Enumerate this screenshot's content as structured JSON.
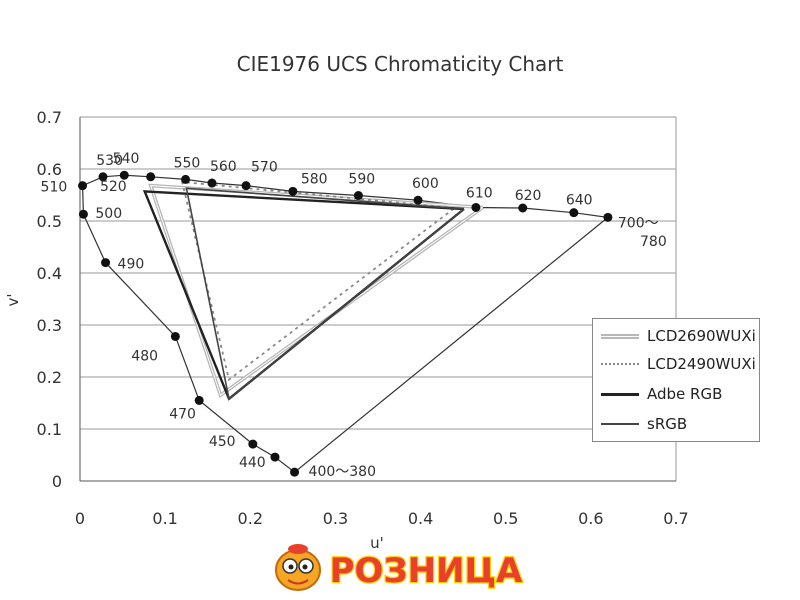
{
  "chart_data": {
    "type": "line",
    "title": "CIE1976 UCS Chromaticity Chart",
    "xlabel": "u'",
    "ylabel": "v'",
    "xlim": [
      0,
      0.7
    ],
    "ylim": [
      0,
      0.7
    ],
    "xticks": [
      "0",
      "0.1",
      "0.2",
      "0.3",
      "0.4",
      "0.5",
      "0.6",
      "0.7"
    ],
    "yticks": [
      "0",
      "0.1",
      "0.2",
      "0.3",
      "0.4",
      "0.5",
      "0.6",
      "0.7"
    ],
    "grid": true,
    "legend_position": "right",
    "spectral_locus": {
      "points": [
        {
          "label": "400～380",
          "x": 0.252,
          "y": 0.017
        },
        {
          "label": "440",
          "x": 0.229,
          "y": 0.046
        },
        {
          "label": "450",
          "x": 0.203,
          "y": 0.071
        },
        {
          "label": "470",
          "x": 0.14,
          "y": 0.155
        },
        {
          "label": "480",
          "x": 0.112,
          "y": 0.278
        },
        {
          "label": "490",
          "x": 0.03,
          "y": 0.42
        },
        {
          "label": "500",
          "x": 0.004,
          "y": 0.513
        },
        {
          "label": "510",
          "x": 0.003,
          "y": 0.568
        },
        {
          "label": "520",
          "x": 0.027,
          "y": 0.585
        },
        {
          "label": "530",
          "x": 0.052,
          "y": 0.588
        },
        {
          "label": "540",
          "x": 0.083,
          "y": 0.585
        },
        {
          "label": "550",
          "x": 0.124,
          "y": 0.58
        },
        {
          "label": "560",
          "x": 0.155,
          "y": 0.573
        },
        {
          "label": "570",
          "x": 0.195,
          "y": 0.568
        },
        {
          "label": "580",
          "x": 0.25,
          "y": 0.557
        },
        {
          "label": "590",
          "x": 0.327,
          "y": 0.549
        },
        {
          "label": "600",
          "x": 0.397,
          "y": 0.54
        },
        {
          "label": "610",
          "x": 0.465,
          "y": 0.526
        },
        {
          "label": "620",
          "x": 0.52,
          "y": 0.525
        },
        {
          "label": "640",
          "x": 0.58,
          "y": 0.516
        },
        {
          "label": "700～",
          "x": 0.62,
          "y": 0.507
        }
      ],
      "extra_label": "780"
    },
    "series": [
      {
        "name": "LCD2690WUXi",
        "style": "double-gray",
        "color": "#aaaaaa",
        "x": [
          0.473,
          0.083,
          0.165,
          0.473
        ],
        "y": [
          0.526,
          0.568,
          0.165,
          0.526
        ]
      },
      {
        "name": "LCD2490WUXi",
        "style": "dotted",
        "color": "#888888",
        "x": [
          0.44,
          0.12,
          0.175,
          0.44
        ],
        "y": [
          0.525,
          0.575,
          0.195,
          0.525
        ]
      },
      {
        "name": "Adbe RGB",
        "style": "solid",
        "color": "#222222",
        "x": [
          0.451,
          0.076,
          0.175,
          0.451
        ],
        "y": [
          0.523,
          0.557,
          0.158,
          0.523
        ]
      },
      {
        "name": "sRGB",
        "style": "solid-thin",
        "color": "#444444",
        "x": [
          0.451,
          0.125,
          0.175,
          0.451
        ],
        "y": [
          0.523,
          0.563,
          0.158,
          0.523
        ]
      }
    ]
  },
  "legend": {
    "items": [
      {
        "label": "LCD2690WUXi"
      },
      {
        "label": "LCD2490WUXi"
      },
      {
        "label": "Adbe RGB"
      },
      {
        "label": "sRGB"
      }
    ]
  },
  "logo": {
    "text": "РОЗНИЦА",
    "colors": {
      "fill": "#e8402a",
      "outline": "#ffd200",
      "mascot": "#f6a623"
    }
  }
}
